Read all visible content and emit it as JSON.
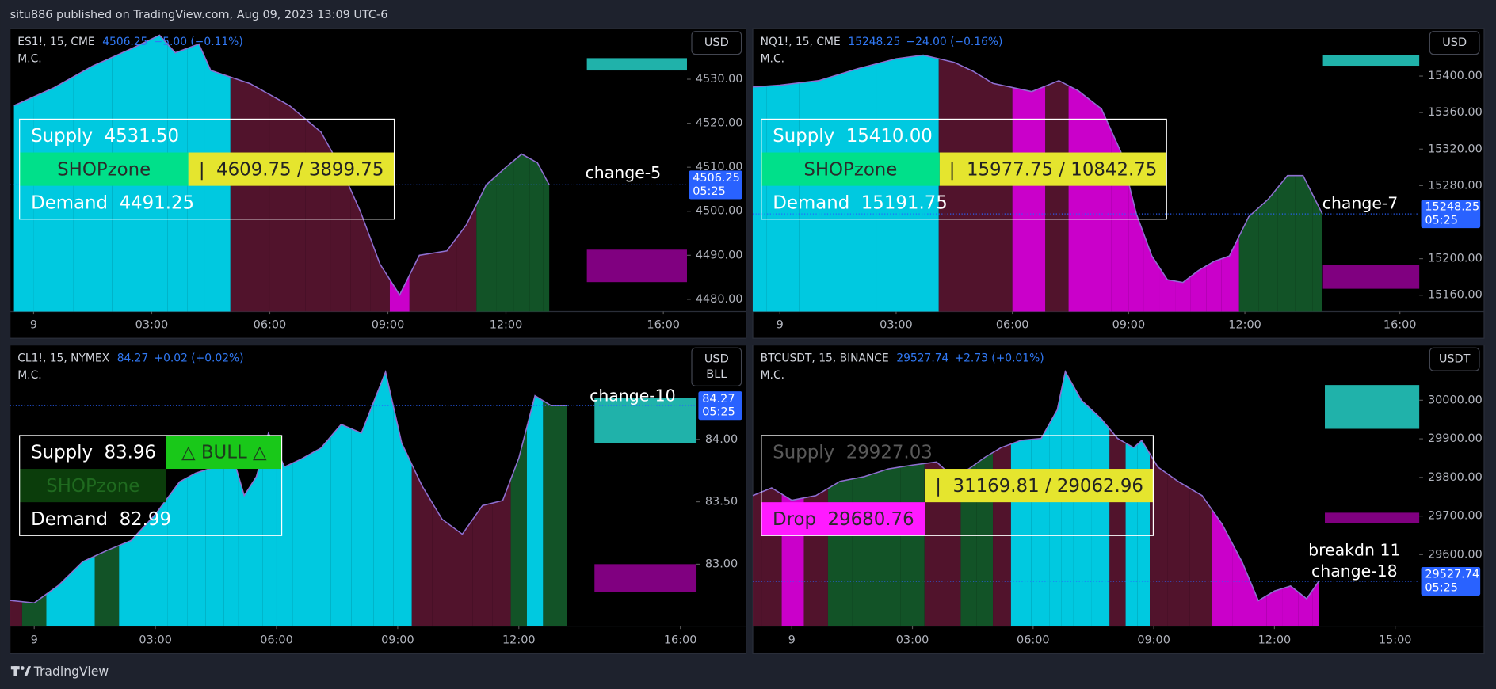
{
  "header": "situ886 published on TradingView.com, Aug 09, 2023 13:09 UTC-6",
  "footer": "TradingView",
  "chart_data": [
    {
      "type": "area",
      "title": "ES1!, 15, CME",
      "price": "4506.25",
      "change": "−5.00 (−0.11%)",
      "indicator": "M.C.",
      "currency": [
        "USD"
      ],
      "countdown": "05:25",
      "x": [
        -0.5,
        0.5,
        1.5,
        2.5,
        3.2,
        3.6,
        4.2,
        4.5,
        5.5,
        6.5,
        7.3,
        7.8,
        8.3,
        8.8,
        9.3,
        9.8,
        10.5,
        11,
        11.5,
        12,
        12.4,
        12.8,
        13.1
      ],
      "values": [
        4524,
        4528,
        4533,
        4537,
        4540,
        4536,
        4538,
        4532,
        4529,
        4524,
        4518,
        4510,
        4500,
        4488,
        4481,
        4490,
        4491,
        4497,
        4506,
        4510,
        4513,
        4511,
        4506
      ],
      "colors": [
        "#00e5ff",
        "#00e5ff",
        "#00e5ff",
        "#00e5ff",
        "#00e5ff",
        "#00e5ff",
        "#00e5ff",
        "#00e5ff",
        "#5c1632",
        "#5c1632",
        "#5c1632",
        "#5c1632",
        "#5c1632",
        "#5c1632",
        "#e600e6",
        "#5c1632",
        "#5c1632",
        "#5c1632",
        "#145f2c",
        "#145f2c",
        "#145f2c",
        "#145f2c",
        "#145f2c"
      ],
      "line_color": "#8e6fd0",
      "xlim": [
        -0.6,
        16.6
      ],
      "ylim": [
        4477.2,
        4541.5
      ],
      "xticks": [
        {
          "value": 0,
          "label": "9"
        },
        {
          "value": 3,
          "label": "03:00"
        },
        {
          "value": 6,
          "label": "06:00"
        },
        {
          "value": 9,
          "label": "09:00"
        },
        {
          "value": 12,
          "label": "12:00"
        },
        {
          "value": 16,
          "label": "16:00"
        }
      ],
      "yticks": [
        {
          "value": 4480,
          "label": "4480.00"
        },
        {
          "value": 4490,
          "label": "4490.00"
        },
        {
          "value": 4500,
          "label": "4500.00"
        },
        {
          "value": 4510,
          "label": "4510.00"
        },
        {
          "value": 4520,
          "label": "4520.00"
        },
        {
          "value": 4530,
          "label": "4530.00"
        }
      ],
      "annotations": [
        "change-5"
      ],
      "box": {
        "rows": [
          {
            "left": {
              "text": "Supply  4531.50",
              "color": "#ffffff"
            }
          },
          {
            "left": {
              "text": "SHOPzone",
              "color": "#2b2b2b",
              "bg": "#00e08a"
            },
            "right": {
              "text": "|  4609.75 / 3899.75",
              "color": "#222222",
              "bg": "#e5e52e"
            }
          },
          {
            "left": {
              "text": "Demand  4491.25",
              "color": "#ffffff"
            }
          }
        ]
      }
    },
    {
      "type": "area",
      "title": "NQ1!, 15, CME",
      "price": "15248.25",
      "change": "−24.00 (−0.16%)",
      "indicator": "M.C.",
      "currency": [
        "USD"
      ],
      "countdown": "05:25",
      "x": [
        -0.7,
        0,
        1,
        2,
        3,
        3.7,
        4.5,
        5,
        5.5,
        6.5,
        7.2,
        7.7,
        8.3,
        8.8,
        9.2,
        9.6,
        10,
        10.4,
        10.8,
        11.2,
        11.6,
        12.1,
        12.6,
        13.1,
        13.5,
        14
      ],
      "values": [
        15388,
        15390,
        15395,
        15408,
        15419,
        15423,
        15415,
        15405,
        15392,
        15383,
        15395,
        15384,
        15364,
        15317,
        15249,
        15203,
        15177,
        15174,
        15187,
        15197,
        15203,
        15246,
        15265,
        15291,
        15291,
        15249
      ],
      "colors": [
        "#00e5ff",
        "#00e5ff",
        "#00e5ff",
        "#00e5ff",
        "#00e5ff",
        "#00e5ff",
        "#5c1632",
        "#5c1632",
        "#5c1632",
        "#e600e6",
        "#5c1632",
        "#e600e6",
        "#e600e6",
        "#e600e6",
        "#e600e6",
        "#e600e6",
        "#e600e6",
        "#e600e6",
        "#e600e6",
        "#e600e6",
        "#e600e6",
        "#145f2c",
        "#145f2c",
        "#145f2c",
        "#145f2c",
        "#145f2c"
      ],
      "line_color": "#8e6fd0",
      "xlim": [
        -0.7,
        16.5
      ],
      "ylim": [
        15142,
        15452
      ],
      "xticks": [
        {
          "value": 0,
          "label": "9"
        },
        {
          "value": 3,
          "label": "03:00"
        },
        {
          "value": 6,
          "label": "06:00"
        },
        {
          "value": 9,
          "label": "09:00"
        },
        {
          "value": 12,
          "label": "12:00"
        },
        {
          "value": 16,
          "label": "16:00"
        }
      ],
      "yticks": [
        {
          "value": 15160,
          "label": "15160.00"
        },
        {
          "value": 15200,
          "label": "15200.00"
        },
        {
          "value": 15280,
          "label": "15280.00"
        },
        {
          "value": 15320,
          "label": "15320.00"
        },
        {
          "value": 15360,
          "label": "15360.00"
        },
        {
          "value": 15400,
          "label": "15400.00"
        }
      ],
      "annotations": [
        "change-7"
      ],
      "box": {
        "rows": [
          {
            "left": {
              "text": "Supply  15410.00",
              "color": "#ffffff"
            }
          },
          {
            "left": {
              "text": "SHOPzone",
              "color": "#2b2b2b",
              "bg": "#00e08a"
            },
            "right": {
              "text": "|  15977.75 / 10842.75",
              "color": "#222222",
              "bg": "#e5e52e"
            }
          },
          {
            "left": {
              "text": "Demand  15191.75",
              "color": "#ffffff"
            }
          }
        ]
      }
    },
    {
      "type": "area",
      "title": "CL1!, 15, NYMEX",
      "price": "84.27",
      "change": "+0.02 (+0.02%)",
      "indicator": "M.C.",
      "currency": [
        "USD",
        "BLL"
      ],
      "countdown": "05:25",
      "x": [
        -0.6,
        0,
        0.6,
        1.2,
        1.8,
        2.4,
        3.0,
        3.6,
        4.0,
        4.5,
        4.9,
        5.2,
        5.5,
        5.8,
        6.2,
        6.6,
        7.1,
        7.6,
        8.1,
        8.7,
        9.1,
        9.6,
        10.1,
        10.6,
        11.1,
        11.6,
        12.0,
        12.4,
        12.8,
        13.2
      ],
      "values": [
        82.71,
        82.69,
        82.83,
        83.02,
        83.11,
        83.19,
        83.4,
        83.66,
        83.73,
        83.78,
        83.88,
        83.55,
        83.7,
        84.05,
        83.78,
        83.84,
        83.93,
        84.12,
        84.05,
        84.54,
        83.97,
        83.63,
        83.36,
        83.24,
        83.47,
        83.51,
        83.85,
        84.35,
        84.27,
        84.27
      ],
      "colors": [
        "#5c1632",
        "#145f2c",
        "#00e5ff",
        "#00e5ff",
        "#145f2c",
        "#00e5ff",
        "#00e5ff",
        "#00e5ff",
        "#00e5ff",
        "#00e5ff",
        "#00e5ff",
        "#00e5ff",
        "#00e5ff",
        "#00e5ff",
        "#00e5ff",
        "#00e5ff",
        "#00e5ff",
        "#00e5ff",
        "#00e5ff",
        "#00e5ff",
        "#00e5ff",
        "#5c1632",
        "#5c1632",
        "#5c1632",
        "#5c1632",
        "#5c1632",
        "#145f2c",
        "#00e5ff",
        "#145f2c",
        "#145f2c"
      ],
      "line_color": "#8e6fd0",
      "xlim": [
        -0.6,
        16.4
      ],
      "ylim": [
        82.504,
        84.756
      ],
      "xticks": [
        {
          "value": 0,
          "label": "9"
        },
        {
          "value": 3,
          "label": "03:00"
        },
        {
          "value": 6,
          "label": "06:00"
        },
        {
          "value": 9,
          "label": "09:00"
        },
        {
          "value": 12,
          "label": "12:00"
        },
        {
          "value": 16,
          "label": "16:00"
        }
      ],
      "yticks": [
        {
          "value": 83,
          "label": "83.00"
        },
        {
          "value": 83.5,
          "label": "83.50"
        },
        {
          "value": 84,
          "label": "84.00"
        }
      ],
      "annotations": [
        "change-10"
      ],
      "box": {
        "rows": [
          {
            "left": {
              "text": "Supply  83.96",
              "color": "#ffffff"
            },
            "right": {
              "text": "△ BULL △",
              "color": "#1d3d1d",
              "bg": "#19c819"
            }
          },
          {
            "left": {
              "text": "SHOPzone",
              "color": "#1f6a1f",
              "bg": "#0b3d0b"
            }
          },
          {
            "left": {
              "text": "Demand  82.99",
              "color": "#ffffff"
            }
          }
        ]
      }
    },
    {
      "type": "area",
      "title": "BTCUSDT, 15, BINANCE",
      "price": "29527.74",
      "change": "+2.73 (+0.01%)",
      "indicator": "M.C.",
      "currency": [
        "USDT"
      ],
      "countdown": "05:25",
      "x": [
        -0.97,
        -0.5,
        0,
        0.6,
        1.2,
        1.8,
        2.4,
        3.0,
        3.6,
        4.0,
        4.4,
        4.8,
        5.2,
        5.7,
        6.2,
        6.6,
        6.8,
        7.2,
        7.7,
        8.1,
        8.5,
        8.7,
        9.1,
        9.6,
        10.2,
        10.7,
        11.2,
        11.6,
        12.0,
        12.4,
        12.8,
        13.1
      ],
      "values": [
        29753,
        29773,
        29741,
        29753,
        29790,
        29802,
        29822,
        29832,
        29840,
        29802,
        29822,
        29852,
        29877,
        29896,
        29901,
        29975,
        30074,
        30000,
        29951,
        29901,
        29877,
        29896,
        29827,
        29790,
        29753,
        29679,
        29580,
        29481,
        29506,
        29519,
        29486,
        29531
      ],
      "colors": [
        "#5c1632",
        "#5c1632",
        "#e600e6",
        "#5c1632",
        "#145f2c",
        "#145f2c",
        "#145f2c",
        "#145f2c",
        "#5c1632",
        "#5c1632",
        "#145f2c",
        "#145f2c",
        "#5c1632",
        "#00e5ff",
        "#00e5ff",
        "#00e5ff",
        "#00e5ff",
        "#00e5ff",
        "#00e5ff",
        "#5c1632",
        "#00e5ff",
        "#00e5ff",
        "#5c1632",
        "#5c1632",
        "#5c1632",
        "#e600e6",
        "#e600e6",
        "#e600e6",
        "#e600e6",
        "#e600e6",
        "#e600e6",
        "#e600e6"
      ],
      "line_color": "#8e6fd0",
      "xlim": [
        -0.97,
        15.6
      ],
      "ylim": [
        29415,
        30143
      ],
      "xticks": [
        {
          "value": 0,
          "label": "9"
        },
        {
          "value": 3,
          "label": "03:00"
        },
        {
          "value": 6,
          "label": "06:00"
        },
        {
          "value": 9,
          "label": "09:00"
        },
        {
          "value": 12,
          "label": "12:00"
        },
        {
          "value": 15,
          "label": "15:00"
        }
      ],
      "yticks": [
        {
          "value": 29600,
          "label": "29600.00"
        },
        {
          "value": 29700,
          "label": "29700.00"
        },
        {
          "value": 29800,
          "label": "29800.00"
        },
        {
          "value": 29900,
          "label": "29900.00"
        },
        {
          "value": 30000,
          "label": "30000.00"
        }
      ],
      "annotations": [
        "breakdn 11",
        "change-18"
      ],
      "box": {
        "rows": [
          {
            "left": {
              "text": "Supply  29927.03",
              "color": "#5a5a5a"
            }
          },
          {
            "right": {
              "text": "|  31169.81 / 29062.96",
              "color": "#222222",
              "bg": "#e5e52e"
            }
          },
          {
            "left": {
              "text": "Drop  29680.76",
              "color": "#2b2b2b",
              "bg": "#ff1aff"
            }
          }
        ]
      }
    }
  ]
}
